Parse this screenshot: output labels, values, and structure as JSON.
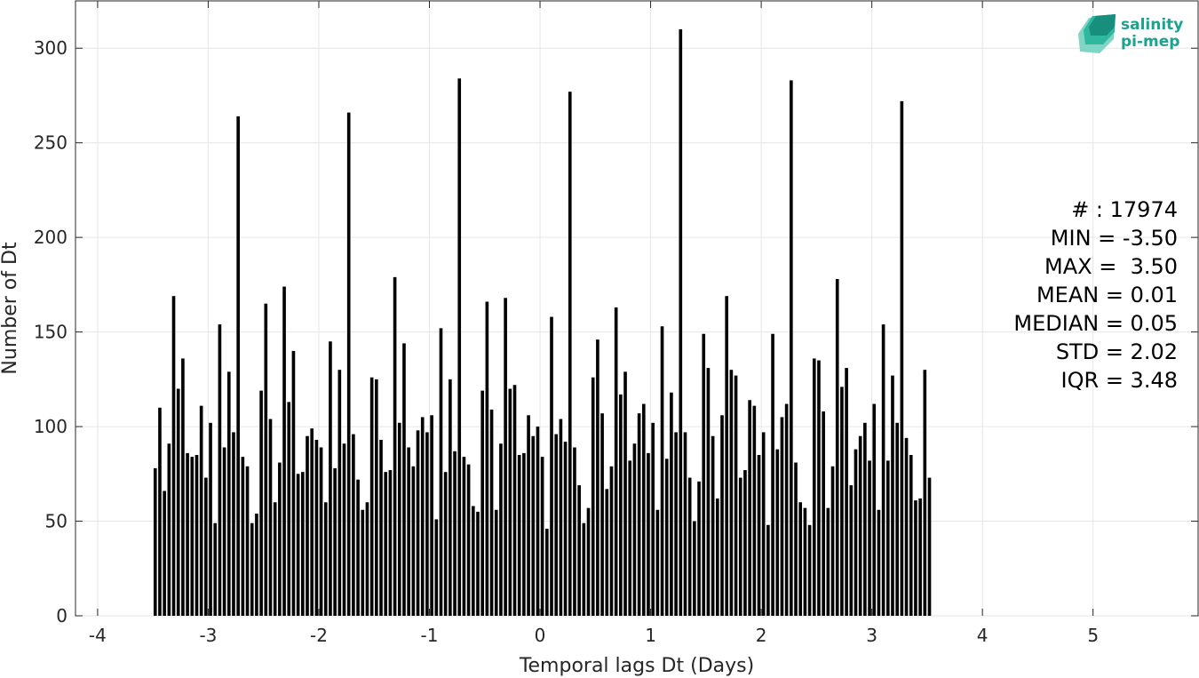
{
  "chart_data": {
    "type": "bar",
    "xlabel": "Temporal lags Dt (Days)",
    "ylabel": "Number of Dt",
    "xlim": [
      -4.2,
      5.95
    ],
    "ylim": [
      0,
      325
    ],
    "xticks": [
      -4,
      -3,
      -2,
      -1,
      0,
      1,
      2,
      3,
      4,
      5
    ],
    "xtick_labels": [
      "-4",
      "-3",
      "-2",
      "-1",
      "0",
      "1",
      "2",
      "3",
      "4",
      "5"
    ],
    "yticks": [
      0,
      50,
      100,
      150,
      200,
      250,
      300
    ],
    "ytick_labels": [
      "0",
      "50",
      "100",
      "150",
      "200",
      "250",
      "300"
    ],
    "grid": true,
    "bar_start": -3.5,
    "bin_width": 0.041667,
    "values": [
      78,
      110,
      66,
      91,
      169,
      120,
      136,
      86,
      84,
      85,
      111,
      73,
      102,
      49,
      154,
      89,
      129,
      97,
      264,
      84,
      79,
      49,
      54,
      119,
      165,
      104,
      60,
      81,
      174,
      113,
      140,
      75,
      76,
      95,
      99,
      93,
      89,
      60,
      145,
      78,
      130,
      91,
      266,
      96,
      72,
      56,
      60,
      126,
      125,
      93,
      76,
      77,
      179,
      102,
      144,
      89,
      79,
      98,
      105,
      97,
      106,
      51,
      152,
      76,
      125,
      87,
      284,
      84,
      80,
      58,
      55,
      119,
      166,
      109,
      56,
      91,
      168,
      120,
      122,
      85,
      86,
      106,
      95,
      100,
      84,
      46,
      158,
      96,
      104,
      92,
      277,
      89,
      69,
      49,
      57,
      126,
      146,
      107,
      67,
      79,
      163,
      117,
      129,
      82,
      91,
      107,
      112,
      86,
      102,
      56,
      153,
      83,
      118,
      97,
      310,
      97,
      73,
      50,
      71,
      149,
      131,
      95,
      62,
      106,
      169,
      130,
      127,
      73,
      77,
      114,
      111,
      85,
      97,
      48,
      149,
      88,
      105,
      112,
      283,
      81,
      60,
      57,
      48,
      136,
      135,
      108,
      57,
      79,
      178,
      121,
      131,
      69,
      88,
      95,
      102,
      82,
      112,
      56,
      154,
      82,
      127,
      102,
      272,
      94,
      85,
      61,
      62,
      130,
      73
    ]
  },
  "stats": {
    "count": "# : 17974",
    "min": "MIN = -3.50",
    "max": "MAX =  3.50",
    "mean": "MEAN = 0.01",
    "median": "MEDIAN = 0.05",
    "std": "STD = 2.02",
    "iqr": "IQR = 3.48"
  },
  "logo": {
    "line1": "salinity",
    "line2": "pi-mep",
    "color": "#1aa38f"
  }
}
